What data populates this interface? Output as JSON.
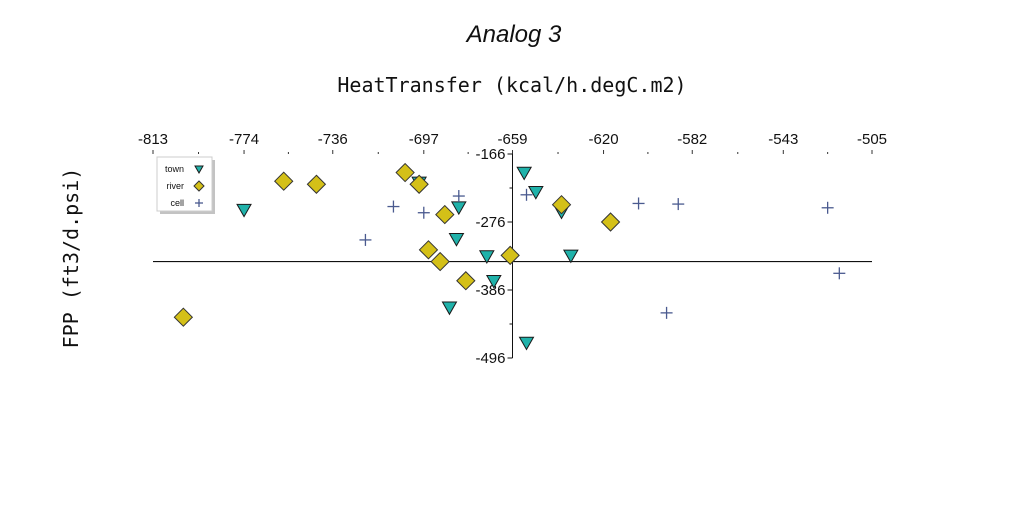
{
  "chart_data": {
    "type": "scatter",
    "title": "Analog 3",
    "xlabel": "HeatTransfer (kcal/h.degC.m2)",
    "ylabel": "FPP (ft3/d.psi)",
    "xlim": [
      -813,
      -505
    ],
    "ylim": [
      -496,
      -166
    ],
    "x_ticks": [
      "-813",
      "-774",
      "-736",
      "-697",
      "-659",
      "-620",
      "-582",
      "-543",
      "-505"
    ],
    "y_ticks": [
      "-166",
      "-276",
      "-386",
      "-496"
    ],
    "x_axis_position": "top",
    "y_axis_at_x": -659,
    "zero_line_y": -340,
    "grid": false,
    "legend_position": "top-left",
    "series": [
      {
        "name": "town",
        "marker": "triangle-down",
        "color": "#20b2aa",
        "points": [
          [
            -774,
            -256
          ],
          [
            -699,
            -212
          ],
          [
            -682,
            -252
          ],
          [
            -670,
            -331
          ],
          [
            -683,
            -303
          ],
          [
            -667,
            -371
          ],
          [
            -654,
            -196
          ],
          [
            -653,
            -471
          ],
          [
            -649,
            -227
          ],
          [
            -638,
            -259
          ],
          [
            -634,
            -330
          ],
          [
            -686,
            -414
          ]
        ]
      },
      {
        "name": "river",
        "marker": "diamond",
        "color": "#d4c018",
        "points": [
          [
            -800,
            -430
          ],
          [
            -757,
            -210
          ],
          [
            -743,
            -215
          ],
          [
            -705,
            -196
          ],
          [
            -699,
            -215
          ],
          [
            -695,
            -321
          ],
          [
            -688,
            -264
          ],
          [
            -679,
            -371
          ],
          [
            -690,
            -340
          ],
          [
            -660,
            -330
          ],
          [
            -638,
            -248
          ],
          [
            -617,
            -276
          ]
        ]
      },
      {
        "name": "cell",
        "marker": "plus",
        "color": "#4a5a8f",
        "points": [
          [
            -722,
            -305
          ],
          [
            -710,
            -251
          ],
          [
            -697,
            -261
          ],
          [
            -682,
            -234
          ],
          [
            -653,
            -232
          ],
          [
            -605,
            -246
          ],
          [
            -588,
            -247
          ],
          [
            -524,
            -253
          ],
          [
            -519,
            -359
          ],
          [
            -593,
            -423
          ]
        ]
      }
    ]
  }
}
